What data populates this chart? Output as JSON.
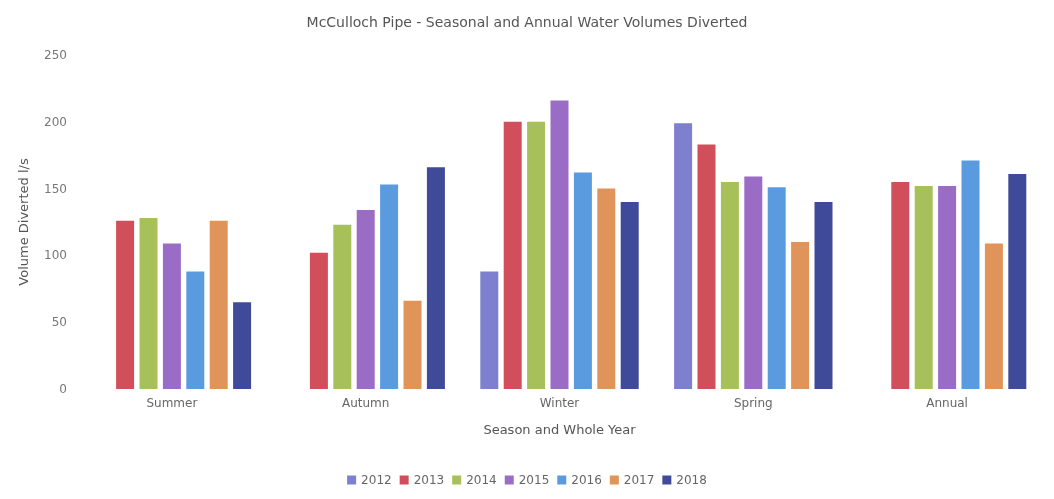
{
  "chart_data": {
    "type": "bar",
    "title": "McCulloch Pipe - Seasonal and Annual Water Volumes Diverted",
    "xlabel": "Season and Whole Year",
    "ylabel": "Volume Diverted l/s",
    "categories": [
      "Summer",
      "Autumn",
      "Winter",
      "Spring",
      "Annual"
    ],
    "series": [
      {
        "name": "2012",
        "color": "#7f7fd0",
        "values": [
          null,
          null,
          88,
          199,
          null
        ]
      },
      {
        "name": "2013",
        "color": "#d04f5a",
        "values": [
          126,
          102,
          200,
          183,
          155
        ]
      },
      {
        "name": "2014",
        "color": "#a8c05a",
        "values": [
          128,
          123,
          200,
          155,
          152
        ]
      },
      {
        "name": "2015",
        "color": "#9b6cc6",
        "values": [
          109,
          134,
          216,
          159,
          152
        ]
      },
      {
        "name": "2016",
        "color": "#5a9be0",
        "values": [
          88,
          153,
          162,
          151,
          171
        ]
      },
      {
        "name": "2017",
        "color": "#e0945a",
        "values": [
          126,
          66,
          150,
          110,
          109
        ]
      },
      {
        "name": "2018",
        "color": "#3f4a98",
        "values": [
          65,
          166,
          140,
          140,
          161
        ]
      }
    ],
    "ylim": [
      0,
      250
    ],
    "yticks": [
      0,
      50,
      100,
      150,
      200,
      250
    ],
    "grid": false,
    "legend": "bottom"
  }
}
